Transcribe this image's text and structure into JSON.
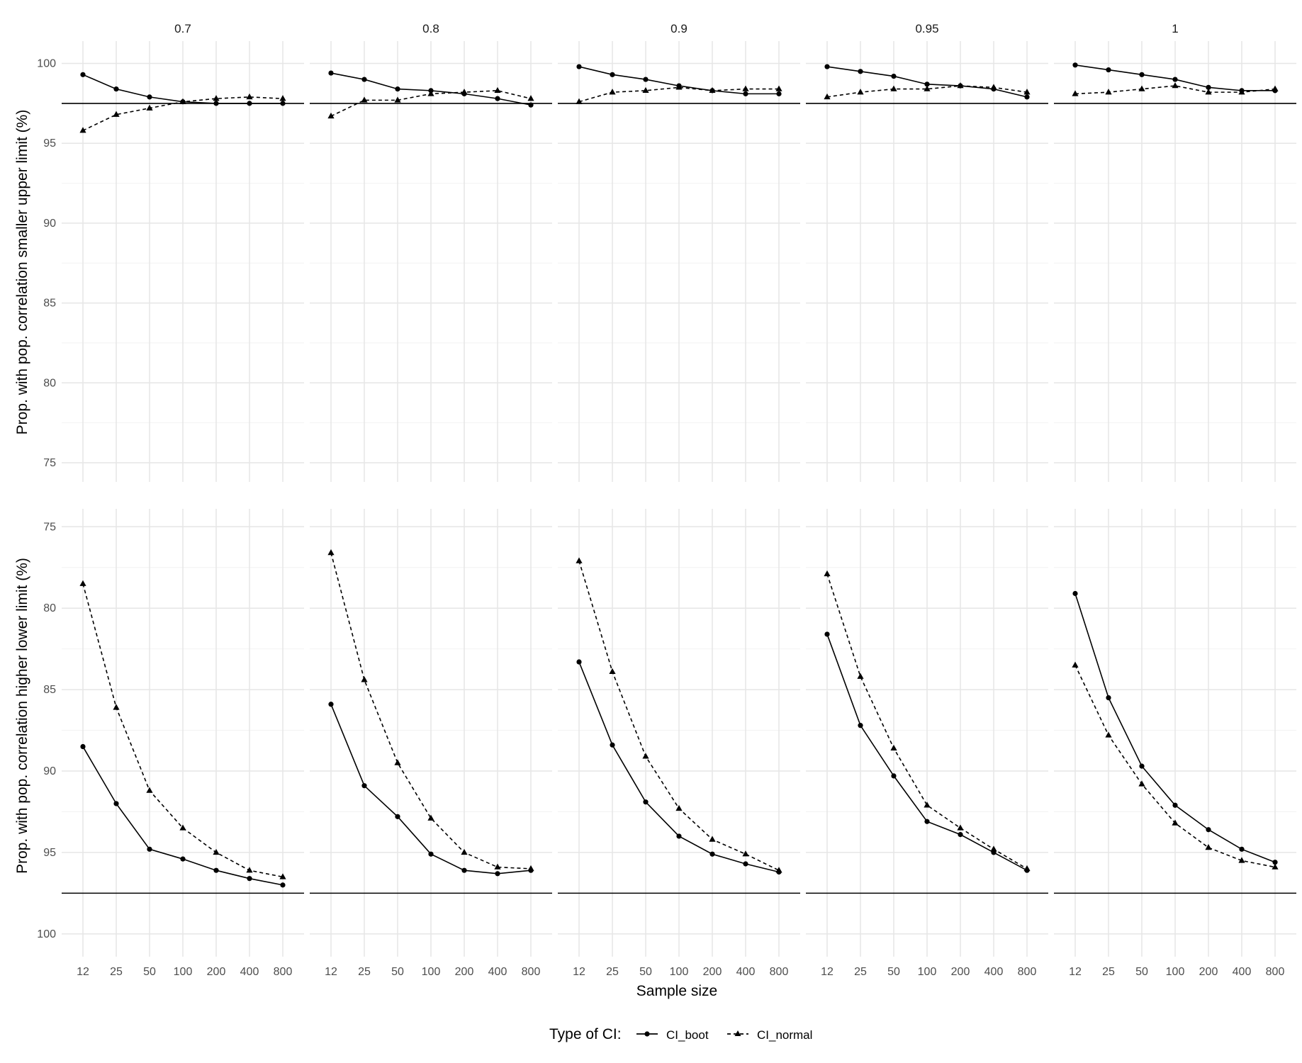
{
  "chart_data": {
    "type": "line",
    "facet_labels": [
      "0.7",
      "0.8",
      "0.9",
      "0.95",
      "1"
    ],
    "x": [
      "12",
      "25",
      "50",
      "100",
      "200",
      "400",
      "800"
    ],
    "xlabel": "Sample size",
    "reference_line": 97.5,
    "grid": true,
    "legend": {
      "title": "Type of CI:",
      "position": "bottom",
      "entries": [
        "CI_boot",
        "CI_normal"
      ]
    },
    "rows": [
      {
        "ylabel": "Prop. with pop. correlation smaller upper limit (%)",
        "yticks": [
          75,
          80,
          85,
          90,
          95,
          100
        ],
        "ylim": [
          73.8,
          101.4
        ],
        "reversed": false,
        "panels": [
          {
            "facet": "0.7",
            "series": [
              {
                "name": "CI_boot",
                "values": [
                  99.3,
                  98.4,
                  97.9,
                  97.6,
                  97.5,
                  97.5,
                  97.5
                ]
              },
              {
                "name": "CI_normal",
                "values": [
                  95.8,
                  96.8,
                  97.2,
                  97.6,
                  97.8,
                  97.9,
                  97.8
                ]
              }
            ]
          },
          {
            "facet": "0.8",
            "series": [
              {
                "name": "CI_boot",
                "values": [
                  99.4,
                  99.0,
                  98.4,
                  98.3,
                  98.1,
                  97.8,
                  97.4
                ]
              },
              {
                "name": "CI_normal",
                "values": [
                  96.7,
                  97.7,
                  97.7,
                  98.1,
                  98.2,
                  98.3,
                  97.8
                ]
              }
            ]
          },
          {
            "facet": "0.9",
            "series": [
              {
                "name": "CI_boot",
                "values": [
                  99.8,
                  99.3,
                  99.0,
                  98.6,
                  98.3,
                  98.1,
                  98.1
                ]
              },
              {
                "name": "CI_normal",
                "values": [
                  97.6,
                  98.2,
                  98.3,
                  98.5,
                  98.3,
                  98.4,
                  98.4
                ]
              }
            ]
          },
          {
            "facet": "0.95",
            "series": [
              {
                "name": "CI_boot",
                "values": [
                  99.8,
                  99.5,
                  99.2,
                  98.7,
                  98.6,
                  98.4,
                  97.9
                ]
              },
              {
                "name": "CI_normal",
                "values": [
                  97.9,
                  98.2,
                  98.4,
                  98.4,
                  98.6,
                  98.5,
                  98.2
                ]
              }
            ]
          },
          {
            "facet": "1",
            "series": [
              {
                "name": "CI_boot",
                "values": [
                  99.9,
                  99.6,
                  99.3,
                  99.0,
                  98.5,
                  98.3,
                  98.3
                ]
              },
              {
                "name": "CI_normal",
                "values": [
                  98.1,
                  98.2,
                  98.4,
                  98.6,
                  98.2,
                  98.2,
                  98.4
                ]
              }
            ]
          }
        ]
      },
      {
        "ylabel": "Prop. with pop. correlation higher lower limit (%)",
        "yticks": [
          75,
          80,
          85,
          90,
          95,
          100
        ],
        "ylim": [
          73.9,
          101.4
        ],
        "reversed": true,
        "panels": [
          {
            "facet": "0.7",
            "series": [
              {
                "name": "CI_boot",
                "values": [
                  88.5,
                  92.0,
                  94.8,
                  95.4,
                  96.1,
                  96.6,
                  97.0
                ]
              },
              {
                "name": "CI_normal",
                "values": [
                  78.5,
                  86.1,
                  91.2,
                  93.5,
                  95.0,
                  96.1,
                  96.5
                ]
              }
            ]
          },
          {
            "facet": "0.8",
            "series": [
              {
                "name": "CI_boot",
                "values": [
                  85.9,
                  90.9,
                  92.8,
                  95.1,
                  96.1,
                  96.3,
                  96.1
                ]
              },
              {
                "name": "CI_normal",
                "values": [
                  76.6,
                  84.4,
                  89.5,
                  92.9,
                  95.0,
                  95.9,
                  96.0
                ]
              }
            ]
          },
          {
            "facet": "0.9",
            "series": [
              {
                "name": "CI_boot",
                "values": [
                  83.3,
                  88.4,
                  91.9,
                  94.0,
                  95.1,
                  95.7,
                  96.2
                ]
              },
              {
                "name": "CI_normal",
                "values": [
                  77.1,
                  83.9,
                  89.1,
                  92.3,
                  94.2,
                  95.1,
                  96.1
                ]
              }
            ]
          },
          {
            "facet": "0.95",
            "series": [
              {
                "name": "CI_boot",
                "values": [
                  81.6,
                  87.2,
                  90.3,
                  93.1,
                  93.9,
                  95.0,
                  96.1
                ]
              },
              {
                "name": "CI_normal",
                "values": [
                  77.9,
                  84.2,
                  88.6,
                  92.1,
                  93.5,
                  94.8,
                  96.0
                ]
              }
            ]
          },
          {
            "facet": "1",
            "series": [
              {
                "name": "CI_boot",
                "values": [
                  79.1,
                  85.5,
                  89.7,
                  92.1,
                  93.6,
                  94.8,
                  95.6
                ]
              },
              {
                "name": "CI_normal",
                "values": [
                  83.5,
                  87.8,
                  90.8,
                  93.2,
                  94.7,
                  95.5,
                  95.9
                ]
              }
            ]
          }
        ]
      }
    ]
  }
}
